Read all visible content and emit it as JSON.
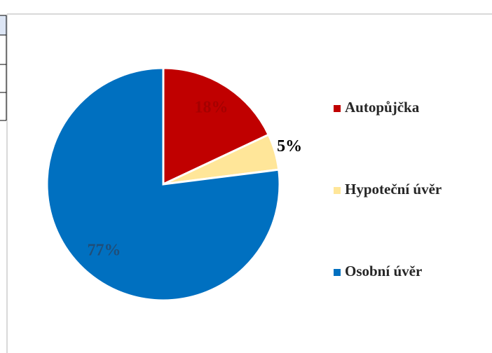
{
  "chart_data": {
    "type": "pie",
    "categories": [
      "Autopůjčka",
      "Hypoteční úvěr",
      "Osobní úvěr"
    ],
    "values": [
      18,
      5,
      77
    ],
    "value_labels": [
      "18%",
      "5%",
      "77%"
    ],
    "colors": [
      "#c00000",
      "#ffe699",
      "#0070c0"
    ],
    "label_colors": [
      "#a50000",
      "#000000",
      "#1f4e79"
    ],
    "legend": "right"
  }
}
